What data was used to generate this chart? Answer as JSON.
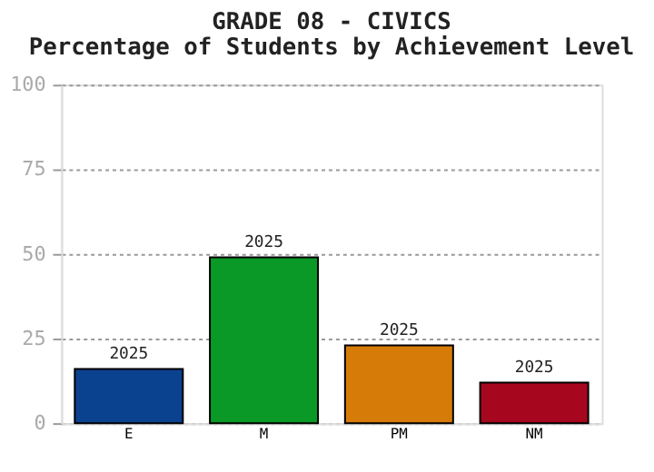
{
  "chart_data": {
    "type": "bar",
    "title": "GRADE 08 - CIVICS",
    "subtitle": "Percentage of Students by Achievement Level",
    "categories": [
      "E",
      "M",
      "PM",
      "NM"
    ],
    "values": [
      16,
      49,
      23,
      12
    ],
    "colors": [
      "#0b428f",
      "#0a9926",
      "#d67b08",
      "#a6071f"
    ],
    "ylim": [
      0,
      100
    ],
    "yticks": [
      0,
      25,
      50,
      75,
      100
    ],
    "grid": "y",
    "annotations": [
      {
        "text": "2025",
        "x": "E",
        "y": 16
      },
      {
        "text": "2025",
        "x": "M",
        "y": 49
      },
      {
        "text": "2025",
        "x": "PM",
        "y": 23
      },
      {
        "text": "2025",
        "x": "NM",
        "y": 12
      }
    ]
  }
}
